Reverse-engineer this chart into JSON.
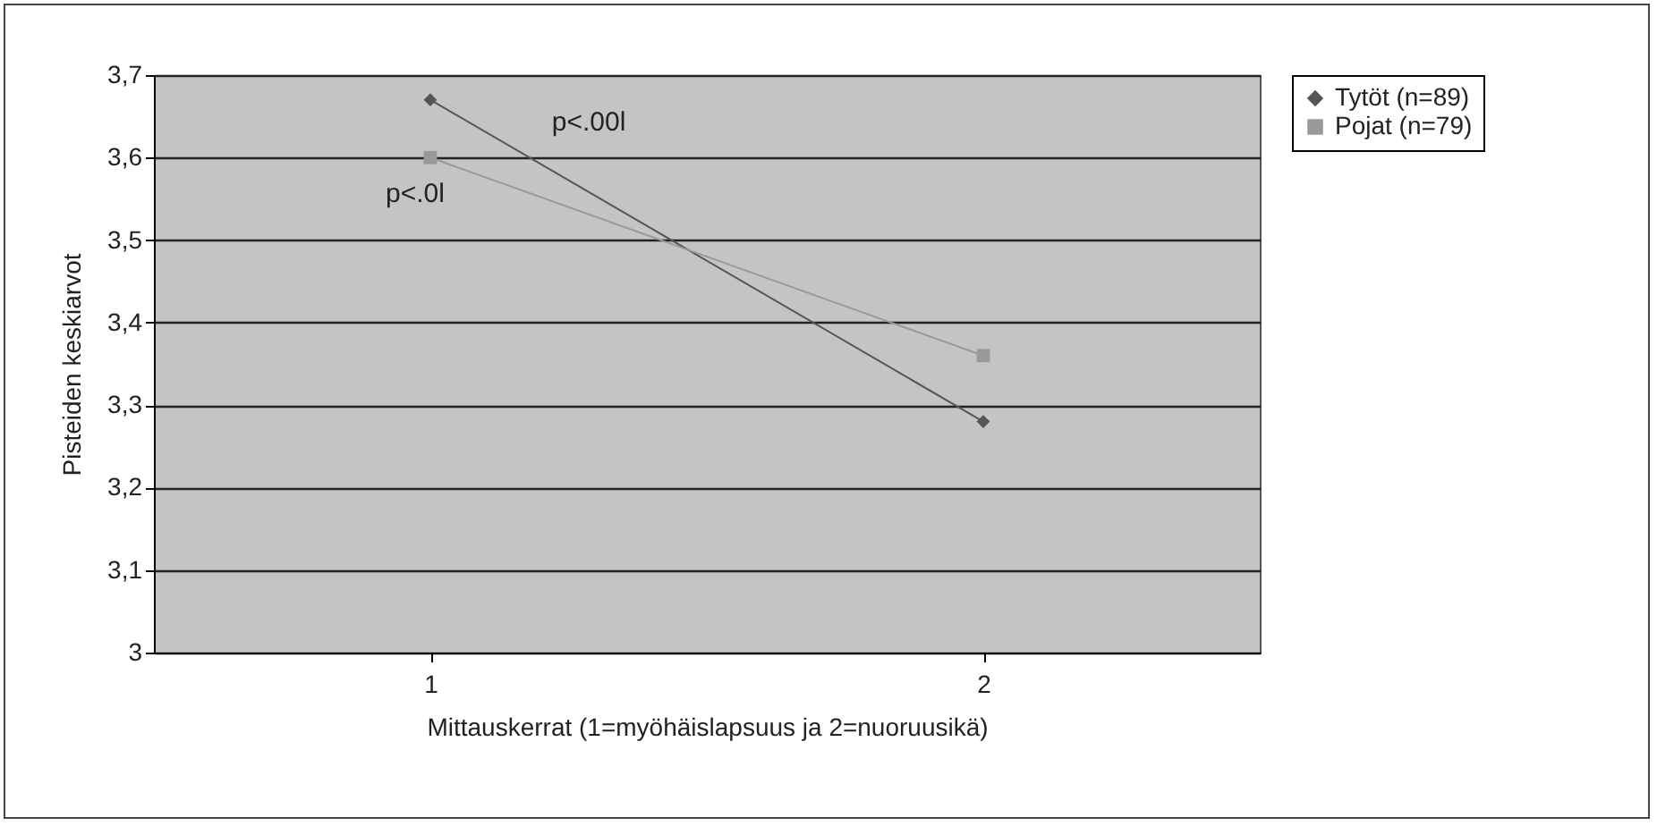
{
  "chart_data": {
    "type": "line",
    "xlabel": "Mittauskerrat (1=myöhäislapsuus ja 2=nuoruusikä)",
    "ylabel": "Pisteiden keskiarvot",
    "categories": [
      "1",
      "2"
    ],
    "series": [
      {
        "name": "Tytöt (n=89)",
        "color": "#555555",
        "marker": "diamond",
        "values": [
          3.67,
          3.28
        ]
      },
      {
        "name": "Pojat (n=79)",
        "color": "#999999",
        "marker": "square",
        "values": [
          3.6,
          3.36
        ]
      }
    ],
    "ylim": [
      3,
      3.7
    ],
    "yticks": [
      3,
      {
        "value": 3.1,
        "label": "3,1"
      },
      {
        "value": 3.2,
        "label": "3,2"
      },
      {
        "value": 3.3,
        "label": "3,3"
      },
      {
        "value": 3.4,
        "label": "3,4"
      },
      {
        "value": 3.5,
        "label": "3,5"
      },
      {
        "value": 3.6,
        "label": "3,6"
      },
      {
        "value": 3.7,
        "label": "3,7"
      }
    ],
    "grid": "y",
    "legend": "right",
    "annotations": [
      "p<.00l",
      "p<.0l"
    ]
  }
}
